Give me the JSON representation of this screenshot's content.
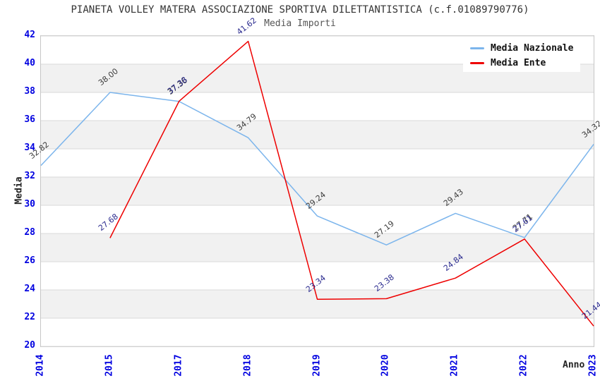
{
  "page": {
    "title": "PIANETA VOLLEY MATERA ASSOCIAZIONE SPORTIVA DILETTANTISTICA (c.f.01089790776)",
    "subtitle": "Media Importi"
  },
  "axes": {
    "ylabel": "Media",
    "xlabel": "Anno",
    "tick_color": "#0000e0",
    "grid_color": "#d9d9d9",
    "band_colors": [
      "#ffffff",
      "#f1f1f1"
    ]
  },
  "legend": {
    "items": [
      {
        "label": "Media Nazionale",
        "color": "#7cb5ec"
      },
      {
        "label": "Media Ente",
        "color": "#ee0000"
      }
    ]
  },
  "chart_data": {
    "type": "line",
    "title": "PIANETA VOLLEY MATERA ASSOCIAZIONE SPORTIVA DILETTANTISTICA (c.f.01089790776)",
    "subtitle": "Media Importi",
    "xlabel": "Anno",
    "ylabel": "Media",
    "categories": [
      "2014",
      "2015",
      "2017",
      "2018",
      "2019",
      "2020",
      "2021",
      "2022",
      "2023"
    ],
    "series": [
      {
        "name": "Media Nazionale",
        "color": "#7cb5ec",
        "label_color": "#3d3d3d",
        "values": [
          32.82,
          38.0,
          37.36,
          34.79,
          29.24,
          27.19,
          29.43,
          27.71,
          34.32
        ]
      },
      {
        "name": "Media Ente",
        "color": "#ee0000",
        "label_color": "#2b2b8f",
        "values": [
          null,
          27.68,
          37.38,
          41.62,
          23.34,
          23.38,
          24.84,
          27.61,
          21.44
        ]
      }
    ],
    "ylim": [
      20,
      42
    ],
    "ytick_step": 2,
    "grid": "horizontal-bands",
    "legend_position": "top-right",
    "point_labels": "all, rotated -38deg, 2 decimals"
  }
}
